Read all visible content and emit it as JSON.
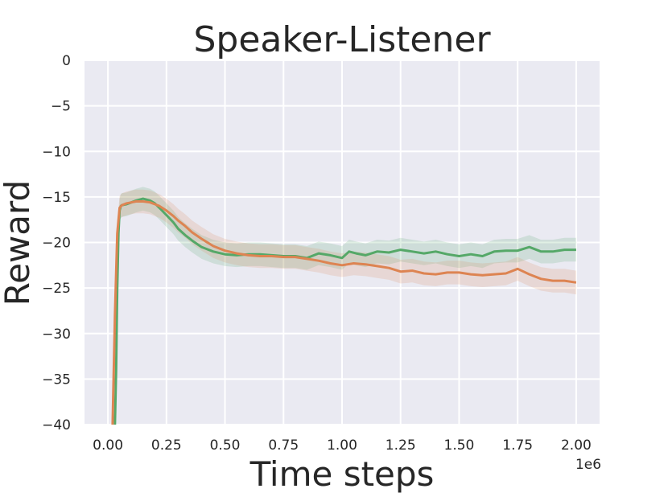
{
  "chart_data": {
    "type": "line",
    "title": "Speaker-Listener",
    "xlabel": "Time steps",
    "ylabel": "Reward",
    "x_offset_label": "1e6",
    "xlim": [
      -0.1,
      2.1
    ],
    "ylim": [
      -40,
      0
    ],
    "xticks": [
      0.0,
      0.25,
      0.5,
      0.75,
      1.0,
      1.25,
      1.5,
      1.75,
      2.0
    ],
    "xtick_labels": [
      "0.00",
      "0.25",
      "0.50",
      "0.75",
      "1.00",
      "1.25",
      "1.50",
      "1.75",
      "2.00"
    ],
    "yticks": [
      0,
      -5,
      -10,
      -15,
      -20,
      -25,
      -30,
      -35,
      -40
    ],
    "ytick_labels": [
      "0",
      "−5",
      "−10",
      "−15",
      "−20",
      "−25",
      "−30",
      "−35",
      "−40"
    ],
    "grid": true,
    "background": "#eaeaf2",
    "series": [
      {
        "color": "#55a868",
        "x": [
          0.03,
          0.035,
          0.04,
          0.045,
          0.05,
          0.055,
          0.06,
          0.08,
          0.1,
          0.12,
          0.15,
          0.18,
          0.2,
          0.22,
          0.25,
          0.28,
          0.3,
          0.33,
          0.36,
          0.4,
          0.45,
          0.5,
          0.55,
          0.6,
          0.65,
          0.7,
          0.75,
          0.8,
          0.85,
          0.9,
          0.95,
          1.0,
          1.03,
          1.06,
          1.1,
          1.15,
          1.2,
          1.25,
          1.3,
          1.35,
          1.4,
          1.45,
          1.5,
          1.55,
          1.6,
          1.65,
          1.7,
          1.75,
          1.8,
          1.85,
          1.9,
          1.95,
          2.0
        ],
        "y": [
          -40,
          -34,
          -25,
          -19,
          -16.5,
          -16.0,
          -15.9,
          -15.8,
          -15.6,
          -15.4,
          -15.2,
          -15.4,
          -15.7,
          -16.2,
          -17.0,
          -17.8,
          -18.5,
          -19.2,
          -19.8,
          -20.5,
          -21.0,
          -21.3,
          -21.4,
          -21.3,
          -21.3,
          -21.4,
          -21.5,
          -21.5,
          -21.7,
          -21.2,
          -21.4,
          -21.7,
          -21.0,
          -21.2,
          -21.4,
          -21.0,
          -21.1,
          -20.8,
          -21.0,
          -21.2,
          -21.0,
          -21.3,
          -21.5,
          -21.3,
          -21.5,
          -21.0,
          -20.9,
          -20.9,
          -20.5,
          -21.0,
          -21.0,
          -20.8,
          -20.8
        ]
      },
      {
        "color": "#dd8452",
        "x": [
          0.02,
          0.03,
          0.04,
          0.05,
          0.06,
          0.08,
          0.1,
          0.12,
          0.15,
          0.18,
          0.2,
          0.22,
          0.25,
          0.28,
          0.3,
          0.33,
          0.36,
          0.4,
          0.45,
          0.5,
          0.55,
          0.6,
          0.65,
          0.7,
          0.75,
          0.8,
          0.85,
          0.9,
          0.95,
          1.0,
          1.05,
          1.1,
          1.15,
          1.2,
          1.25,
          1.3,
          1.35,
          1.4,
          1.45,
          1.5,
          1.55,
          1.6,
          1.65,
          1.7,
          1.75,
          1.8,
          1.85,
          1.9,
          1.95,
          2.0
        ],
        "y": [
          -40,
          -28,
          -19,
          -16.2,
          -15.9,
          -15.7,
          -15.6,
          -15.5,
          -15.5,
          -15.6,
          -15.8,
          -16.0,
          -16.5,
          -17.1,
          -17.6,
          -18.2,
          -18.9,
          -19.6,
          -20.4,
          -20.9,
          -21.2,
          -21.4,
          -21.5,
          -21.5,
          -21.6,
          -21.6,
          -21.8,
          -22.0,
          -22.3,
          -22.5,
          -22.3,
          -22.4,
          -22.6,
          -22.8,
          -23.2,
          -23.1,
          -23.4,
          -23.5,
          -23.3,
          -23.3,
          -23.5,
          -23.6,
          -23.5,
          -23.4,
          -22.9,
          -23.5,
          -24.0,
          -24.2,
          -24.2,
          -24.4
        ]
      }
    ]
  }
}
